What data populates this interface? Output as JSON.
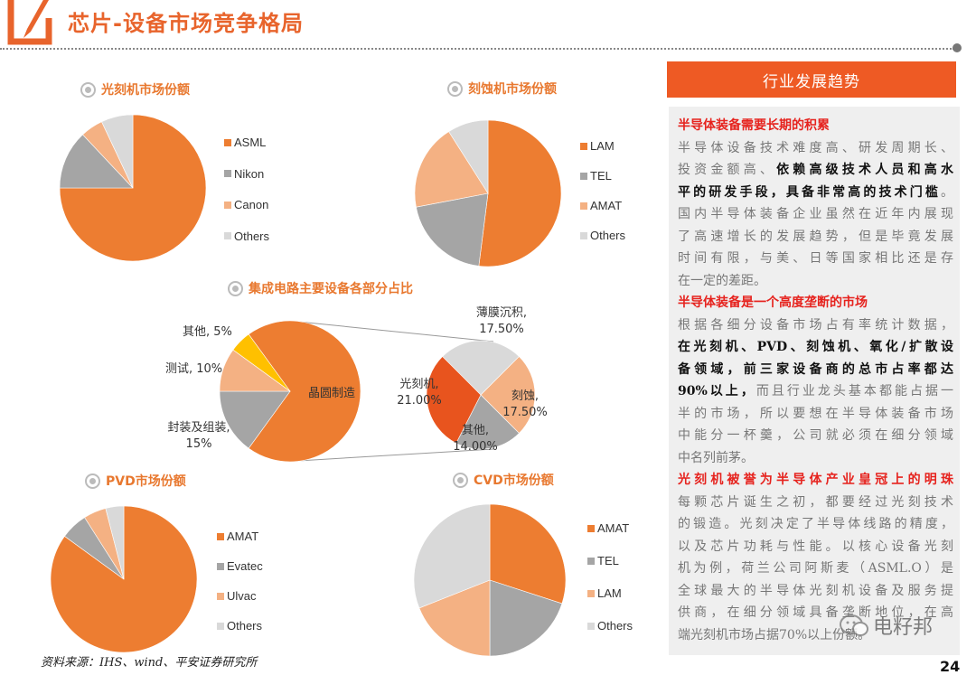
{
  "header": {
    "title": "芯片-设备市场竞争格局",
    "icon": "pencil-square-icon"
  },
  "colors": {
    "accent": "#EE5A24",
    "orange": "#ED7D31",
    "gray": "#A5A5A5",
    "peach": "#F4B183",
    "light_gray": "#D9D9D9",
    "yellow": "#FFC000",
    "dark_orange": "#E8541E",
    "red_text": "#E6231E"
  },
  "chart_data": [
    {
      "type": "pie",
      "title": "光刻机市场份额",
      "legend": "right",
      "categories": [
        "ASML",
        "Nikon",
        "Canon",
        "Others"
      ],
      "values": [
        75,
        13,
        5,
        7
      ]
    },
    {
      "type": "pie",
      "title": "刻蚀机市场份额",
      "legend": "right",
      "categories": [
        "LAM",
        "TEL",
        "AMAT",
        "Others"
      ],
      "values": [
        52,
        20,
        19,
        9
      ]
    },
    {
      "type": "pie",
      "title": "集成电路主要设备各部分占比",
      "categories": [
        "晶圆制造",
        "封装及组装",
        "测试",
        "其他"
      ],
      "labels": [
        "晶圆制造",
        "封装及组装, 15%",
        "测试, 10%",
        "其他, 5%"
      ],
      "values": [
        70,
        15,
        10,
        5
      ],
      "breakout": {
        "of": "晶圆制造",
        "categories": [
          "薄膜沉积",
          "刻蚀",
          "其他",
          "光刻机"
        ],
        "values": [
          17.5,
          17.5,
          14.0,
          21.0
        ],
        "labels": [
          "薄膜沉积, 17.50%",
          "刻蚀, 17.50%",
          "其他, 14.00%",
          "光刻机, 21.00%"
        ]
      }
    },
    {
      "type": "pie",
      "title": "PVD市场份额",
      "legend": "right",
      "categories": [
        "AMAT",
        "Evatec",
        "Ulvac",
        "Others"
      ],
      "values": [
        85,
        6,
        5,
        4
      ]
    },
    {
      "type": "pie",
      "title": "CVD市场份额",
      "legend": "right",
      "categories": [
        "AMAT",
        "TEL",
        "LAM",
        "Others"
      ],
      "values": [
        30,
        20,
        19,
        31
      ]
    }
  ],
  "trend": {
    "heading": "行业发展趋势",
    "lines": [
      [
        {
          "s": "red",
          "t": "半导体装备需要长期的积累"
        }
      ],
      [
        {
          "s": "n",
          "t": "半导体设备技术难度高、研发周期长、"
        }
      ],
      [
        {
          "s": "n",
          "t": "投资金额高、"
        },
        {
          "s": "bold",
          "t": "依赖高级技术人员和高水"
        }
      ],
      [
        {
          "s": "bold",
          "t": "平的研发手段，具备非常高的技术门槛"
        },
        {
          "s": "n",
          "t": "。"
        }
      ],
      [
        {
          "s": "n",
          "t": "国内半导体装备企业虽然在近年内展现"
        }
      ],
      [
        {
          "s": "n",
          "t": "了高速增长的发展趋势，但是毕竟发展"
        }
      ],
      [
        {
          "s": "n",
          "t": "时间有限，与美、日等国家相比还是存"
        }
      ],
      [
        {
          "s": "n",
          "t": "在一定的差距。"
        }
      ],
      [
        {
          "s": "red",
          "t": "半导体装备是一个高度垄断的市场"
        }
      ],
      [
        {
          "s": "n",
          "t": "根据各细分设备市场占有率统计数据，"
        }
      ],
      [
        {
          "s": "bold",
          "t": "在光刻机、PVD、刻蚀机、氧化/扩散设"
        }
      ],
      [
        {
          "s": "bold",
          "t": "备领域，前三家设备商的总市占率都达"
        }
      ],
      [
        {
          "s": "bold",
          "t": "90%以上，"
        },
        {
          "s": "n",
          "t": "而且行业龙头基本都能占据一"
        }
      ],
      [
        {
          "s": "n",
          "t": "半的市场，所以要想在半导体装备市场"
        }
      ],
      [
        {
          "s": "n",
          "t": "中能分一杯羹，公司就必须在细分领域"
        }
      ],
      [
        {
          "s": "n",
          "t": "中名列前茅。"
        }
      ],
      [
        {
          "s": "red",
          "t": "光刻机被誉为半导体产业皇冠上的明珠"
        }
      ],
      [
        {
          "s": "n",
          "t": "每颗芯片诞生之初，都要经过光刻技术"
        }
      ],
      [
        {
          "s": "n",
          "t": "的锻造。光刻决定了半导体线路的精度，"
        }
      ],
      [
        {
          "s": "n",
          "t": "以及芯片功耗与性能。以核心设备光刻"
        }
      ],
      [
        {
          "s": "n",
          "t": "机为例，荷兰公司阿斯麦（ASML.O）是"
        }
      ],
      [
        {
          "s": "n",
          "t": "全球最大的半导体光刻机设备及服务提"
        }
      ],
      [
        {
          "s": "n",
          "t": "供商，在细分领域具备垄断地位，在高"
        }
      ],
      [
        {
          "s": "n",
          "t": "端光刻机市场占据70%以上份额。"
        }
      ]
    ]
  },
  "footer": {
    "source": "资料来源：IHS、wind、平安证券研究所",
    "page": "24"
  },
  "watermark": {
    "text": "电籽邦",
    "icon": "wechat-icon"
  }
}
